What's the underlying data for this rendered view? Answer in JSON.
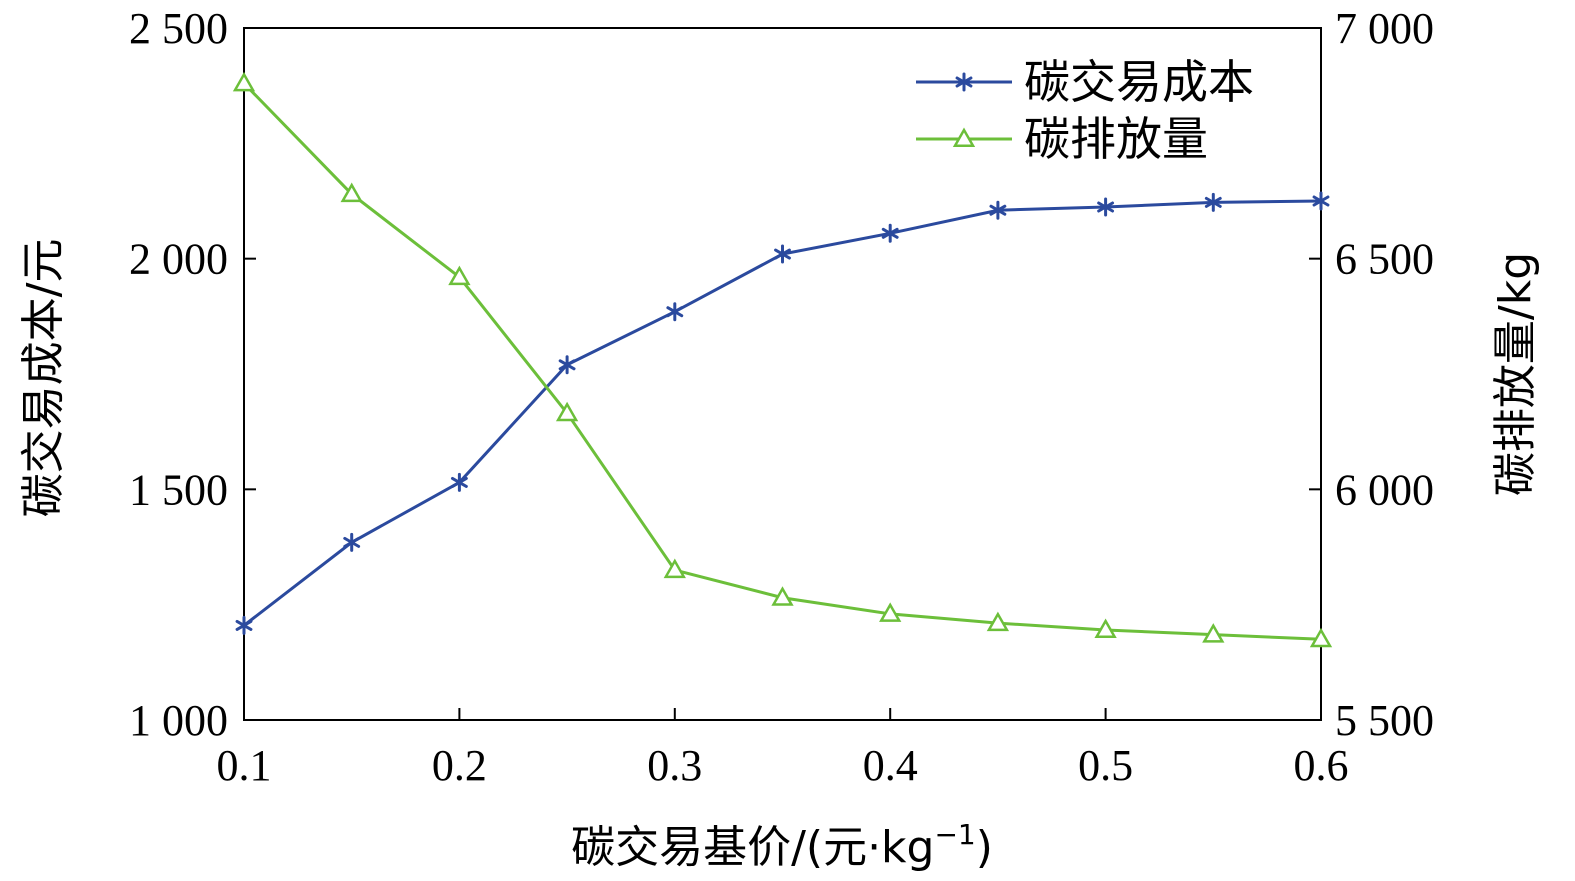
{
  "chart_data": {
    "type": "line",
    "x": [
      0.1,
      0.15,
      0.2,
      0.25,
      0.3,
      0.35,
      0.4,
      0.45,
      0.5,
      0.55,
      0.6
    ],
    "x_tick_labels": [
      "0.1",
      "0.2",
      "0.3",
      "0.4",
      "0.5",
      "0.6"
    ],
    "x_ticks": [
      0.1,
      0.2,
      0.3,
      0.4,
      0.5,
      0.6
    ],
    "xlim": [
      0.1,
      0.6
    ],
    "xlabel_main": "碳交易基价/(元·kg",
    "xlabel_sup": "−1",
    "xlabel_close": ")",
    "ylabel": "碳交易成本/元",
    "ylim": [
      1000,
      2500
    ],
    "y_ticks": [
      1000,
      1500,
      2000,
      2500
    ],
    "y_tick_labels": [
      "1 000",
      "1 500",
      "2 000",
      "2 500"
    ],
    "y2label": "碳排放量/kg",
    "y2lim": [
      5500,
      7000
    ],
    "y2_ticks": [
      5500,
      6000,
      6500,
      7000
    ],
    "y2_tick_labels": [
      "5 500",
      "6 000",
      "6 500",
      "7 000"
    ],
    "grid": false,
    "legend_position": "top-right",
    "series": [
      {
        "name": "碳交易成本",
        "axis": "left",
        "marker": "asterisk",
        "color": "#2b4a9e",
        "values": [
          1205,
          1385,
          1515,
          1770,
          1885,
          2010,
          2055,
          2105,
          2112,
          2122,
          2125
        ]
      },
      {
        "name": "碳排放量",
        "axis": "right",
        "marker": "triangle",
        "color": "#6cbf3a",
        "values": [
          6880,
          6640,
          6460,
          6165,
          5825,
          5765,
          5730,
          5710,
          5695,
          5685,
          5675
        ]
      }
    ]
  }
}
